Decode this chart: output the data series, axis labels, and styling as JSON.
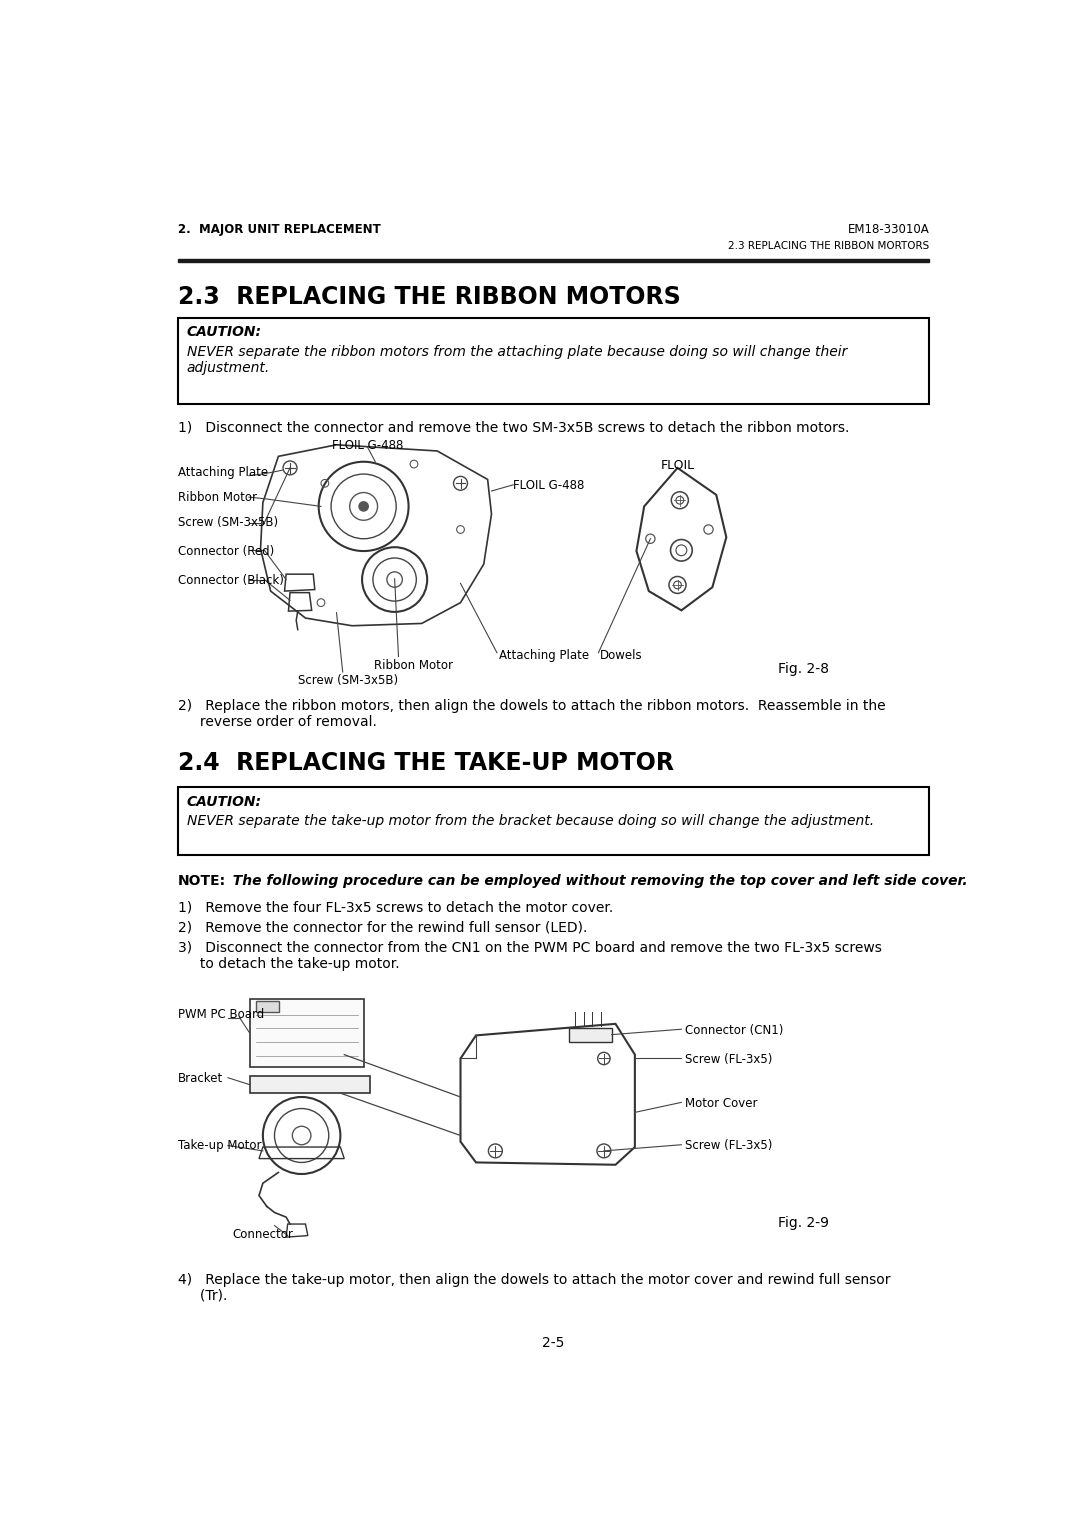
{
  "page_bg": "#ffffff",
  "header_left": "2.  MAJOR UNIT REPLACEMENT",
  "header_right": "EM18-33010A",
  "header_sub_right": "2.3 REPLACING THE RIBBON MORTORS",
  "section_23_title": "2.3  REPLACING THE RIBBON MOTORS",
  "caution_label_1": "CAUTION:",
  "caution_text_1": "NEVER separate the ribbon motors from the attaching plate because doing so will change their\nadjustment.",
  "step1_text": "1)   Disconnect the connector and remove the two SM-3x5B screws to detach the ribbon motors.",
  "fig28_label": "Fig. 2-8",
  "step2_text": "2)   Replace the ribbon motors, then align the dowels to attach the ribbon motors.  Reassemble in the\n     reverse order of removal.",
  "section_24_title": "2.4  REPLACING THE TAKE-UP MOTOR",
  "caution_label_2": "CAUTION:",
  "caution_text_2": "NEVER separate the take-up motor from the bracket because doing so will change the adjustment.",
  "note_bold": "NOTE:",
  "note_italic": "  The following procedure can be employed without removing the top cover and left side cover.",
  "takeup_step1": "1)   Remove the four FL-3x5 screws to detach the motor cover.",
  "takeup_step2": "2)   Remove the connector for the rewind full sensor (LED).",
  "takeup_step3": "3)   Disconnect the connector from the CN1 on the PWM PC board and remove the two FL-3x5 screws\n     to detach the take-up motor.",
  "fig29_label": "Fig. 2-9",
  "step4_text": "4)   Replace the take-up motor, then align the dowels to attach the motor cover and rewind full sensor\n     (Tr).",
  "page_number": "2-5",
  "font_color": "#000000",
  "border_color": "#000000"
}
